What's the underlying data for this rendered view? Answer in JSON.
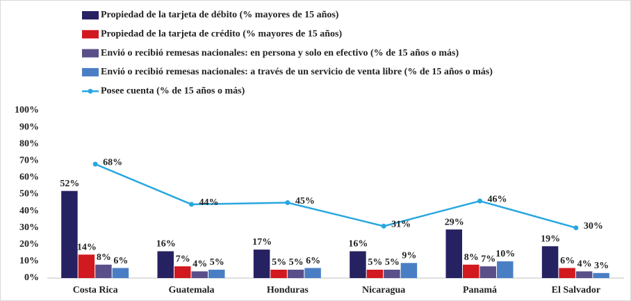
{
  "chart_data": {
    "type": "bar",
    "categories": [
      "Costa Rica",
      "Guatemala",
      "Honduras",
      "Nicaragua",
      "Panamá",
      "El Salvador"
    ],
    "series": [
      {
        "name": "Propiedad de la tarjeta de débito (% mayores de 15 años)",
        "color": "#262262",
        "values": [
          52,
          16,
          17,
          16,
          29,
          19
        ],
        "value_labels": [
          "52%",
          "16%",
          "17%",
          "16%",
          "29%",
          "19%"
        ]
      },
      {
        "name": "Propiedad de la tarjeta de crédito (% mayores de 15 años)",
        "color": "#d1191f",
        "values": [
          14,
          7,
          5,
          5,
          8,
          6
        ],
        "value_labels": [
          "14%",
          "7%",
          "5%",
          "5%",
          "8%",
          "6%"
        ]
      },
      {
        "name": "Envió o recibió remesas nacionales: en persona y solo en efectivo (% de 15 años o más)",
        "color": "#5b4f8a",
        "values": [
          8,
          4,
          5,
          5,
          7,
          4
        ],
        "value_labels": [
          "8%",
          "4%",
          "5%",
          "5%",
          "7%",
          "4%"
        ]
      },
      {
        "name": "Envió o recibió remesas nacionales: a través de un servicio de venta libre (% de 15 años o más)",
        "color": "#4a7ec4",
        "values": [
          6,
          5,
          6,
          9,
          10,
          3
        ],
        "value_labels": [
          "6%",
          "5%",
          "6%",
          "9%",
          "10%",
          "3%"
        ]
      },
      {
        "name": "Posee cuenta (% de 15 años o más)",
        "type": "line",
        "color": "#27a7e0",
        "values": [
          68,
          44,
          45,
          31,
          46,
          30
        ],
        "value_labels": [
          "68%",
          "44%",
          "45%",
          "31%",
          "46%",
          "30%"
        ]
      }
    ],
    "ylim": [
      0,
      100
    ],
    "yticks": [
      {
        "value": 0,
        "label": "0%"
      },
      {
        "value": 10,
        "label": "10%"
      },
      {
        "value": 20,
        "label": "20%"
      },
      {
        "value": 30,
        "label": "30%"
      },
      {
        "value": 40,
        "label": "40%"
      },
      {
        "value": 50,
        "label": "50%"
      },
      {
        "value": 60,
        "label": "60%"
      },
      {
        "value": 70,
        "label": "70%"
      },
      {
        "value": 80,
        "label": "80%"
      },
      {
        "value": 90,
        "label": "90%"
      },
      {
        "value": 100,
        "label": "100%"
      }
    ],
    "grid": false
  }
}
